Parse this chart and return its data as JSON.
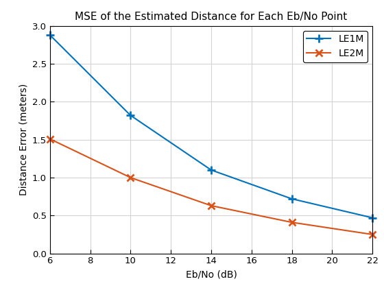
{
  "title": "MSE of the Estimated Distance for Each Eb/No Point",
  "xlabel": "Eb/No (dB)",
  "ylabel": "Distance Error (meters)",
  "le1m": {
    "x": [
      6,
      10,
      14,
      18,
      22
    ],
    "y": [
      2.88,
      1.82,
      1.1,
      0.72,
      0.47
    ],
    "color": "#0072BD",
    "label": "LE1M",
    "linewidth": 1.5
  },
  "le2m": {
    "x": [
      6,
      10,
      14,
      18,
      22
    ],
    "y": [
      1.51,
      1.0,
      0.63,
      0.41,
      0.25
    ],
    "color": "#D95319",
    "label": "LE2M",
    "linewidth": 1.5
  },
  "xlim": [
    6,
    22
  ],
  "ylim": [
    0,
    3.0
  ],
  "xticks": [
    6,
    8,
    10,
    12,
    14,
    16,
    18,
    20,
    22
  ],
  "yticks": [
    0,
    0.5,
    1.0,
    1.5,
    2.0,
    2.5,
    3.0
  ],
  "background_color": "#ffffff",
  "grid_color": "#d3d3d3"
}
